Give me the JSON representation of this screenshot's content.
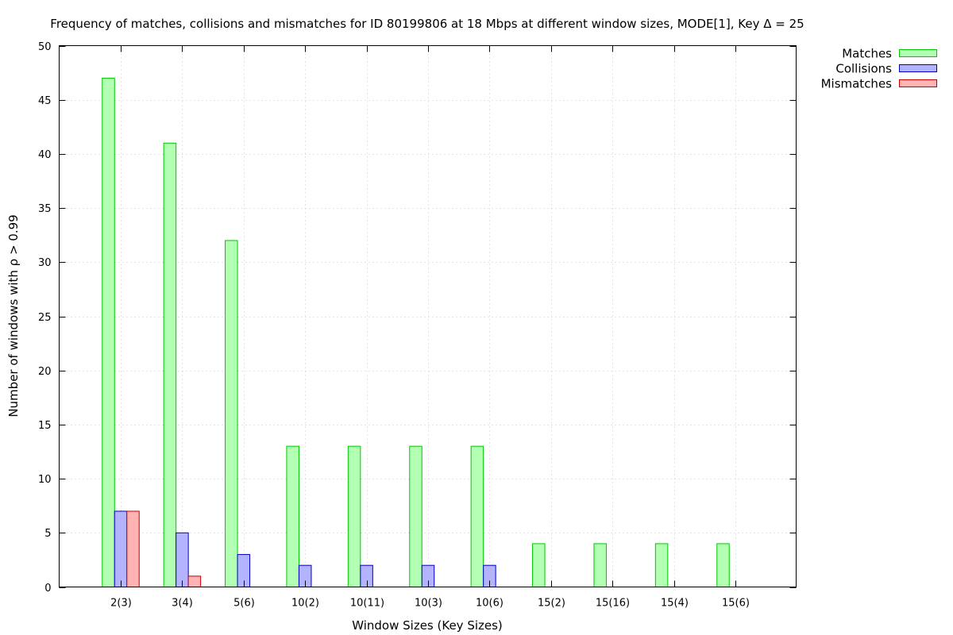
{
  "chart_data": {
    "type": "bar",
    "title": "Frequency of matches, collisions and mismatches for ID 80199806 at 18 Mbps at different window sizes, MODE[1], Key Δ = 25",
    "xlabel": "Window Sizes (Key Sizes)",
    "ylabel": "Number of windows with ρ > 0.99",
    "ylim": [
      0,
      50
    ],
    "yticks": [
      0,
      5,
      10,
      15,
      20,
      25,
      30,
      35,
      40,
      45,
      50
    ],
    "grid": true,
    "legend_position": "top-right, outside plot",
    "categories": [
      "2(3)",
      "3(4)",
      "5(6)",
      "10(2)",
      "10(11)",
      "10(3)",
      "10(6)",
      "15(2)",
      "15(16)",
      "15(4)",
      "15(6)"
    ],
    "series": [
      {
        "name": "Matches",
        "values": [
          47,
          41,
          32,
          13,
          13,
          13,
          13,
          4,
          4,
          4,
          4
        ],
        "fill": "#b3ffb3",
        "stroke": "#00c800"
      },
      {
        "name": "Collisions",
        "values": [
          7,
          5,
          3,
          2,
          2,
          2,
          2,
          0,
          0,
          0,
          0
        ],
        "fill": "#b3b3ff",
        "stroke": "#0000c8"
      },
      {
        "name": "Mismatches",
        "values": [
          7,
          1,
          0,
          0,
          0,
          0,
          0,
          0,
          0,
          0,
          0
        ],
        "fill": "#ffb3b3",
        "stroke": "#c80000"
      }
    ]
  }
}
